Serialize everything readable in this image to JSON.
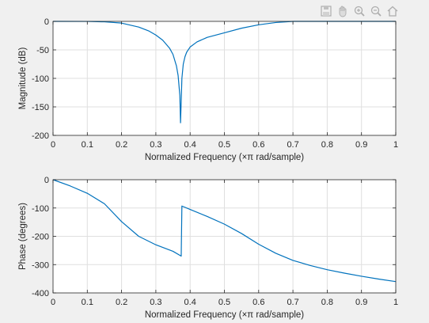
{
  "toolbar": {
    "icons": [
      "save-icon",
      "pan-icon",
      "zoom-in-icon",
      "zoom-out-icon",
      "home-icon"
    ]
  },
  "colors": {
    "figure_bg": "#f0f0f0",
    "axes_bg": "#ffffff",
    "line": "#0072bd",
    "grid": "#dfdfdf",
    "axis": "#262626"
  },
  "chart_data": [
    {
      "type": "line",
      "xlabel": "Normalized Frequency  (×π rad/sample)",
      "ylabel": "Magnitude (dB)",
      "xlim": [
        0,
        1
      ],
      "ylim": [
        -200,
        0
      ],
      "xticks": [
        0,
        0.1,
        0.2,
        0.3,
        0.4,
        0.5,
        0.6,
        0.7,
        0.8,
        0.9,
        1
      ],
      "yticks": [
        -200,
        -150,
        -100,
        -50,
        0
      ],
      "xtick_labels": [
        "0",
        "0.1",
        "0.2",
        "0.3",
        "0.4",
        "0.5",
        "0.6",
        "0.7",
        "0.8",
        "0.9",
        "1"
      ],
      "ytick_labels": [
        "-200",
        "-150",
        "-100",
        "-50",
        "0"
      ],
      "grid": true,
      "series": [
        {
          "x": [
            0,
            0.1,
            0.15,
            0.2,
            0.25,
            0.28,
            0.3,
            0.32,
            0.34,
            0.35,
            0.36,
            0.365,
            0.37,
            0.372,
            0.374,
            0.376,
            0.38,
            0.385,
            0.39,
            0.4,
            0.42,
            0.45,
            0.5,
            0.55,
            0.6,
            0.65,
            0.7,
            0.8,
            0.9,
            1
          ],
          "y": [
            0,
            -0.1,
            -0.8,
            -3,
            -10,
            -17,
            -24,
            -33,
            -47,
            -58,
            -78,
            -95,
            -130,
            -178,
            -140,
            -100,
            -75,
            -62,
            -54,
            -45,
            -36,
            -28,
            -20,
            -12,
            -6,
            -2,
            0,
            0,
            0,
            0
          ]
        }
      ]
    },
    {
      "type": "line",
      "xlabel": "Normalized Frequency  (×π rad/sample)",
      "ylabel": "Phase (degrees)",
      "xlim": [
        0,
        1
      ],
      "ylim": [
        -400,
        0
      ],
      "xticks": [
        0,
        0.1,
        0.2,
        0.3,
        0.4,
        0.5,
        0.6,
        0.7,
        0.8,
        0.9,
        1
      ],
      "yticks": [
        -400,
        -300,
        -200,
        -100,
        0
      ],
      "xtick_labels": [
        "0",
        "0.1",
        "0.2",
        "0.3",
        "0.4",
        "0.5",
        "0.6",
        "0.7",
        "0.8",
        "0.9",
        "1"
      ],
      "ytick_labels": [
        "-400",
        "-300",
        "-200",
        "-100",
        "0"
      ],
      "grid": true,
      "series": [
        {
          "x": [
            0,
            0.05,
            0.1,
            0.15,
            0.2,
            0.25,
            0.3,
            0.35,
            0.374,
            0.376,
            0.4,
            0.45,
            0.5,
            0.55,
            0.6,
            0.65,
            0.7,
            0.75,
            0.8,
            0.85,
            0.9,
            0.95,
            1
          ],
          "y": [
            0,
            -22,
            -48,
            -85,
            -148,
            -200,
            -230,
            -253,
            -270,
            -93,
            -105,
            -130,
            -157,
            -190,
            -228,
            -260,
            -285,
            -303,
            -318,
            -330,
            -341,
            -351,
            -360
          ]
        }
      ]
    }
  ]
}
